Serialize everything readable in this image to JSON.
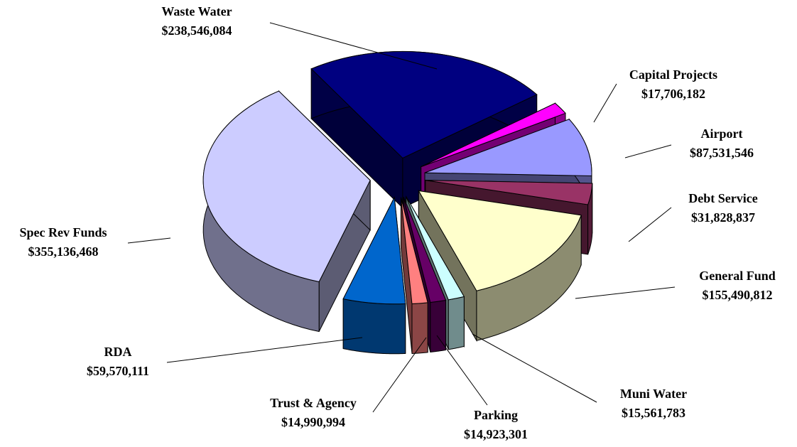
{
  "chart_data": {
    "type": "pie",
    "categories": [
      "Waste Water",
      "Capital Projects",
      "Airport",
      "Debt Service",
      "General Fund",
      "Muni Water",
      "Parking",
      "Trust & Agency",
      "RDA",
      "Spec Rev Funds"
    ],
    "values": [
      238546084,
      17706182,
      87531546,
      31828837,
      155490812,
      15561783,
      14923301,
      14990994,
      59570111,
      355136468
    ],
    "value_labels": [
      "$238,546,084",
      "$17,706,182",
      "$87,531,546",
      "$31,828,837",
      "$155,490,812",
      "$15,561,783",
      "$14,923,301",
      "$14,990,994",
      "$59,570,111",
      "$355,136,468"
    ],
    "colors": [
      "#000080",
      "#ff00ff",
      "#9999ff",
      "#993366",
      "#ffffcc",
      "#ccffff",
      "#660066",
      "#ff8080",
      "#0066cc",
      "#ccccff"
    ]
  }
}
